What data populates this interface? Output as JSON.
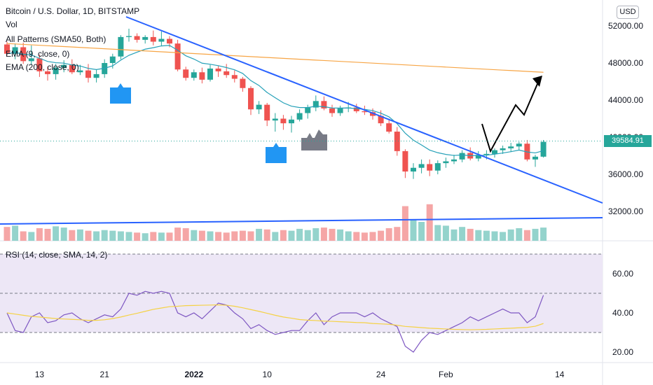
{
  "header": {
    "title": "Bitcoin / U.S. Dollar, 1D, BITSTAMP",
    "indicators": [
      "Vol",
      "All Patterns (SMA50, Both)",
      "EMA (9, close, 0)",
      "EMA (200, close, 0)"
    ],
    "currency": "USD"
  },
  "colors": {
    "up": "#26a69a",
    "down": "#ef5350",
    "up_vol": "#94d3cc",
    "down_vol": "#f5a6a6",
    "ema9": "#26a1b8",
    "ema200": "#f7a545",
    "trend": "#2962ff",
    "rsi": "#7e57c2",
    "rsi_ma": "#f5d245",
    "rsi_bg": "#ede7f6"
  },
  "chart_data": [
    {
      "type": "candlestick",
      "title": "Bitcoin / U.S. Dollar, 1D, BITSTAMP",
      "ylim": [
        27500,
        55000
      ],
      "y_ticks": [
        "52000.00",
        "48000.00",
        "44000.00",
        "40000.00",
        "36000.00",
        "32000.00"
      ],
      "x_ticks": [
        "13",
        "21",
        "2022",
        "10",
        "24",
        "Feb",
        "14"
      ],
      "last_price": "39584.91",
      "candles": [
        [
          50000,
          50300,
          48800,
          49000
        ],
        [
          49000,
          50100,
          48400,
          49700
        ],
        [
          49700,
          50200,
          47900,
          48200
        ],
        [
          48200,
          49900,
          47800,
          48500
        ],
        [
          48500,
          48900,
          46500,
          47100
        ],
        [
          47100,
          47600,
          46100,
          46800
        ],
        [
          46800,
          47900,
          46200,
          47500
        ],
        [
          47500,
          48300,
          47000,
          47800
        ],
        [
          47800,
          48400,
          46800,
          47000
        ],
        [
          47000,
          47800,
          46700,
          47200
        ],
        [
          47200,
          47900,
          45900,
          46400
        ],
        [
          46400,
          47300,
          45900,
          46800
        ],
        [
          46800,
          48400,
          46400,
          48000
        ],
        [
          48000,
          49000,
          47400,
          48700
        ],
        [
          48700,
          51000,
          48400,
          50800
        ],
        [
          50800,
          51700,
          50300,
          50900
        ],
        [
          50900,
          51200,
          50200,
          50500
        ],
        [
          50500,
          51000,
          50100,
          50800
        ],
        [
          50800,
          51500,
          49900,
          50300
        ],
        [
          50300,
          51400,
          49800,
          50600
        ],
        [
          50600,
          50900,
          49700,
          50100
        ],
        [
          50100,
          50500,
          47100,
          47300
        ],
        [
          47300,
          47600,
          46100,
          46400
        ],
        [
          46400,
          47300,
          46100,
          47000
        ],
        [
          47000,
          47500,
          45800,
          46200
        ],
        [
          46200,
          47800,
          46000,
          47400
        ],
        [
          47400,
          47700,
          46500,
          47100
        ],
        [
          47100,
          47900,
          46400,
          46700
        ],
        [
          46700,
          47200,
          45900,
          46300
        ],
        [
          46300,
          46500,
          44900,
          45300
        ],
        [
          45300,
          45500,
          42400,
          43000
        ],
        [
          43000,
          43900,
          42500,
          43500
        ],
        [
          43500,
          43700,
          41200,
          41800
        ],
        [
          41800,
          42600,
          40600,
          42000
        ],
        [
          42000,
          42400,
          40800,
          41500
        ],
        [
          41500,
          42300,
          40500,
          41900
        ],
        [
          41900,
          43000,
          41700,
          42600
        ],
        [
          42600,
          43500,
          42000,
          43200
        ],
        [
          43200,
          44500,
          42800,
          43900
        ],
        [
          43900,
          44400,
          42900,
          43100
        ],
        [
          43100,
          43500,
          42200,
          42600
        ],
        [
          42600,
          43400,
          42300,
          43100
        ],
        [
          43100,
          43800,
          42700,
          43200
        ],
        [
          43200,
          43600,
          42600,
          42800
        ],
        [
          42800,
          43400,
          42400,
          42700
        ],
        [
          42700,
          43100,
          41900,
          42300
        ],
        [
          42300,
          42900,
          41200,
          41500
        ],
        [
          41500,
          42000,
          40400,
          40600
        ],
        [
          40600,
          41100,
          38000,
          38500
        ],
        [
          38500,
          38700,
          35600,
          36300
        ],
        [
          36300,
          37200,
          35500,
          36700
        ],
        [
          36700,
          37600,
          36100,
          37100
        ],
        [
          37100,
          37600,
          35800,
          36400
        ],
        [
          36400,
          37500,
          36000,
          37200
        ],
        [
          37200,
          37800,
          36700,
          37400
        ],
        [
          37400,
          38100,
          37100,
          37600
        ],
        [
          37600,
          38600,
          37300,
          38300
        ],
        [
          38300,
          38900,
          37500,
          37700
        ],
        [
          37700,
          38500,
          37400,
          38100
        ],
        [
          38100,
          38600,
          37600,
          38200
        ],
        [
          38200,
          38800,
          37800,
          38600
        ],
        [
          38600,
          39100,
          38200,
          38800
        ],
        [
          38800,
          39400,
          38400,
          39000
        ],
        [
          39000,
          39500,
          38600,
          39300
        ],
        [
          39300,
          39700,
          37400,
          37600
        ],
        [
          37600,
          38100,
          36800,
          37900
        ],
        [
          37900,
          39700,
          37800,
          39500
        ]
      ],
      "volume": [
        22,
        24,
        15,
        14,
        20,
        19,
        23,
        21,
        17,
        18,
        16,
        15,
        17,
        16,
        15,
        14,
        13,
        12,
        14,
        13,
        13,
        21,
        20,
        17,
        16,
        15,
        14,
        13,
        15,
        16,
        15,
        19,
        18,
        14,
        17,
        16,
        19,
        17,
        20,
        21,
        19,
        18,
        15,
        14,
        13,
        14,
        16,
        20,
        22,
        55,
        34,
        30,
        58,
        25,
        24,
        18,
        22,
        19,
        17,
        16,
        15,
        14,
        18,
        20,
        17,
        19,
        21
      ]
    },
    {
      "type": "line",
      "title": "RSI (14, close, SMA, 14, 2)",
      "ylim": [
        15,
        72
      ],
      "y_ticks": [
        "60.00",
        "40.00",
        "20.00"
      ],
      "bands": [
        70,
        50,
        30
      ],
      "series": [
        {
          "values": [
            40,
            31,
            30,
            38,
            40,
            35,
            36,
            39,
            40,
            37,
            35,
            37,
            39,
            38,
            42,
            50,
            49,
            51,
            50,
            51,
            50,
            40,
            38,
            40,
            37,
            41,
            45,
            44,
            40,
            37,
            32,
            34,
            31,
            29,
            30,
            31,
            31,
            36,
            40,
            34,
            38,
            40,
            40,
            40,
            38,
            40,
            37,
            35,
            33,
            23,
            20,
            26,
            30,
            29,
            31,
            33,
            35,
            38,
            36,
            38,
            40,
            42,
            40,
            40,
            35,
            38,
            49
          ]
        },
        {
          "values": [
            40,
            39.4,
            38.8,
            38.2,
            37.9,
            37.5,
            37.1,
            36.9,
            36.7,
            36.5,
            36.2,
            36.2,
            36.5,
            37.1,
            37.9,
            38.9,
            39.8,
            40.8,
            41.8,
            42.5,
            43.2,
            43.4,
            43.7,
            43.8,
            43.9,
            44,
            44.1,
            43.9,
            43.4,
            42.6,
            41.7,
            40.8,
            39.8,
            38.8,
            37.9,
            37.3,
            36.6,
            36.3,
            36.1,
            35.8,
            35.7,
            35.5,
            35.3,
            35.1,
            35,
            34.6,
            34.4,
            34.2,
            33.7,
            33.1,
            32.8,
            32.5,
            32.2,
            32,
            31.8,
            31.6,
            31.5,
            31.4,
            31.5,
            31.6,
            31.8,
            32,
            32.2,
            32.4,
            32.6,
            33.2,
            34.6
          ]
        }
      ]
    }
  ]
}
